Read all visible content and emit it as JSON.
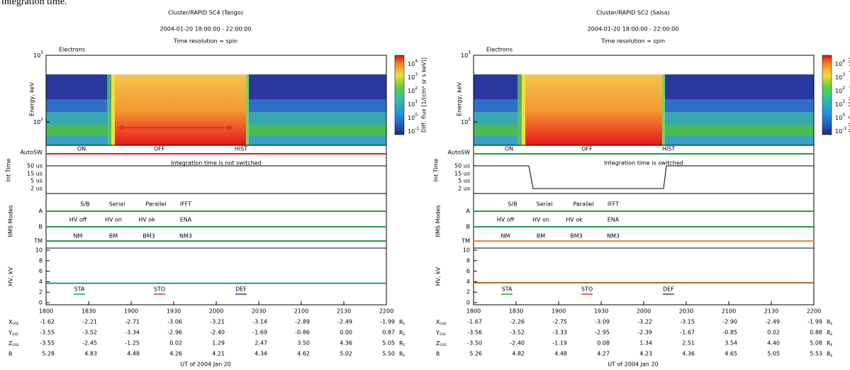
{
  "caption": "integration time.",
  "plots": [
    {
      "title": "Cluster/RAPID SC4 (Tango)",
      "date_range": "2004-01-20 18:00:00 - 22:00:00",
      "resolution": "Time resolution = spin",
      "species": "Electrons",
      "energy_axis": "Energy, keV",
      "energy_ticks": [
        {
          "base": "10",
          "exp": "3"
        },
        {
          "base": "10",
          "exp": "2"
        }
      ],
      "colorbar_label": "Diff. flux [1/(cm² sr s keV)]",
      "colorbar_ticks": [
        {
          "base": "10",
          "exp": "4"
        },
        {
          "base": "10",
          "exp": "3"
        },
        {
          "base": "10",
          "exp": "2"
        },
        {
          "base": "10",
          "exp": "1"
        },
        {
          "base": "10",
          "exp": "0"
        },
        {
          "base": "10",
          "exp": "-1"
        }
      ],
      "autosw_label": "AutoSW",
      "autosw_states": [
        "ON",
        "OFF",
        "HIST"
      ],
      "autosw_color": "#e02020",
      "int_time_axis": "Int Time",
      "int_time_ticks": [
        "50 us",
        "15 us",
        "5 us",
        "2 us"
      ],
      "annotation": "Integration time is not switched",
      "iims_axis": "IIMS Modes",
      "iims_ticks": [
        "A",
        "B",
        "TM"
      ],
      "iims_row_a": [
        "S/B",
        "Serial",
        "Parallel",
        "IFFT"
      ],
      "iims_row_b": [
        "HV off",
        "HV on",
        "HV ok",
        "ENA"
      ],
      "iims_row_tm": [
        "NM",
        "BM",
        "BM3",
        "NM3"
      ],
      "tm_color": "#20a040",
      "hv_axis": "HV, kV",
      "hv_ylim": [
        -0.4,
        10.4
      ],
      "hv_ticks": [
        0,
        2,
        4,
        6,
        8,
        10
      ],
      "hv_value": 3.7,
      "hv_color": "#20a060",
      "hv_states": [
        "STA",
        "STO",
        "DEF"
      ],
      "time_ticks": [
        "1800",
        "1830",
        "1900",
        "1930",
        "2000",
        "2030",
        "2100",
        "2130",
        "2200"
      ],
      "ephemeris": [
        {
          "name": "X",
          "sub": "GSE",
          "values": [
            "-1.62",
            "-2.21",
            "-2.71",
            "-3.06",
            "-3.21",
            "-3.14",
            "-2.89",
            "-2.49",
            "-1.99"
          ],
          "unit": "R",
          "unit_sub": "E"
        },
        {
          "name": "Y",
          "sub": "GSE",
          "values": [
            "-3.55",
            "-3.52",
            "-3.34",
            "-2.96",
            "-2.40",
            "-1.69",
            "-0.86",
            "0.00",
            "0.87"
          ],
          "unit": "R",
          "unit_sub": "E"
        },
        {
          "name": "Z",
          "sub": "GSE",
          "values": [
            "-3.55",
            "-2.45",
            "-1.25",
            "0.02",
            "1.29",
            "2.47",
            "3.50",
            "4.36",
            "5.05"
          ],
          "unit": "R",
          "unit_sub": "E"
        },
        {
          "name": "R",
          "sub": "",
          "values": [
            "5.28",
            "4.83",
            "4.48",
            "4.26",
            "4.21",
            "4.34",
            "4.62",
            "5.02",
            "5.50"
          ],
          "unit": "R",
          "unit_sub": "E"
        }
      ],
      "x_axis_title": "UT of 2004 Jan 20"
    },
    {
      "title": "Cluster/RAPID SC2 (Salsa)",
      "date_range": "2004-01-20 18:00:00 - 22:00:00",
      "resolution": "Time resolution = spin",
      "species": "Electrons",
      "energy_axis": "Energy, keV",
      "energy_ticks": [
        {
          "base": "10",
          "exp": "3"
        },
        {
          "base": "10",
          "exp": "2"
        }
      ],
      "colorbar_label": "Diff. flux [1/(cm² sr s keV)]",
      "colorbar_ticks": [
        {
          "base": "10",
          "exp": "4"
        },
        {
          "base": "10",
          "exp": "3"
        },
        {
          "base": "10",
          "exp": "2"
        },
        {
          "base": "10",
          "exp": "1"
        },
        {
          "base": "10",
          "exp": "0"
        },
        {
          "base": "10",
          "exp": "-1"
        }
      ],
      "autosw_label": "AutoSW",
      "autosw_states": [
        "ON",
        "OFF",
        "HIST"
      ],
      "autosw_color": "#20a040",
      "int_time_axis": "Int Time",
      "int_time_ticks": [
        "50 us",
        "15 us",
        "5 us",
        "2 us"
      ],
      "annotation": "Integration time is switched",
      "iims_axis": "IIMS Modes",
      "iims_ticks": [
        "A",
        "B",
        "TM"
      ],
      "iims_row_a": [
        "S/B",
        "Serial",
        "Parallel",
        "IFFT"
      ],
      "iims_row_b": [
        "HV off",
        "HV on",
        "HV ok",
        "ENA"
      ],
      "iims_row_tm": [
        "NM",
        "BM",
        "BM3",
        "NM3"
      ],
      "tm_color": "#f08a30",
      "hv_axis": "HV, kV",
      "hv_ylim": [
        -0.4,
        10.4
      ],
      "hv_ticks": [
        0,
        2,
        4,
        6,
        8,
        10
      ],
      "hv_value": 3.8,
      "hv_color": "#a86a20",
      "hv_states": [
        "STA",
        "STO",
        "DEF"
      ],
      "time_ticks": [
        "1800",
        "1830",
        "1900",
        "1930",
        "2000",
        "2030",
        "2100",
        "2130",
        "2200"
      ],
      "ephemeris": [
        {
          "name": "X",
          "sub": "GSE",
          "values": [
            "-1.67",
            "-2.26",
            "-2.75",
            "-3.09",
            "-3.22",
            "-3.15",
            "-2.90",
            "-2.49",
            "-1.99"
          ],
          "unit": "R",
          "unit_sub": "E"
        },
        {
          "name": "Y",
          "sub": "GSE",
          "values": [
            "-3.56",
            "-3.52",
            "-3.33",
            "-2.95",
            "-2.39",
            "-1.67",
            "-0.85",
            "0.02",
            "0.88"
          ],
          "unit": "R",
          "unit_sub": "E"
        },
        {
          "name": "Z",
          "sub": "GSE",
          "values": [
            "-3.50",
            "-2.40",
            "-1.19",
            "0.08",
            "1.34",
            "2.51",
            "3.54",
            "4.40",
            "5.08"
          ],
          "unit": "R",
          "unit_sub": "E"
        },
        {
          "name": "R",
          "sub": "",
          "values": [
            "5.26",
            "4.82",
            "4.48",
            "4.27",
            "4.23",
            "4.36",
            "4.65",
            "5.05",
            "5.53"
          ],
          "unit": "R",
          "unit_sub": "E"
        }
      ],
      "x_axis_title": "UT of 2004 Jan 20"
    }
  ]
}
